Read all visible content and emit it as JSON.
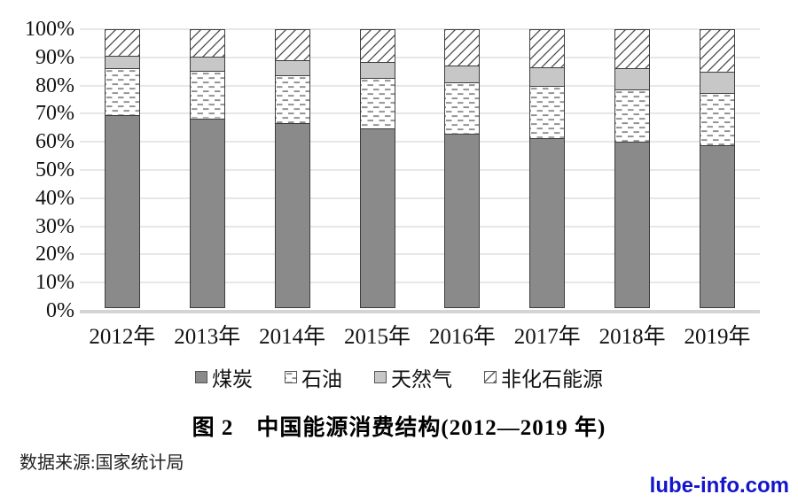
{
  "chart_data": {
    "type": "bar",
    "subtype": "stacked-percent-column",
    "categories": [
      "2012年",
      "2013年",
      "2014年",
      "2015年",
      "2016年",
      "2017年",
      "2018年",
      "2019年"
    ],
    "series": [
      {
        "name": "煤炭",
        "style": "solid-dark",
        "values": [
          68.5,
          67.4,
          65.6,
          63.8,
          62.0,
          60.4,
          59.0,
          57.7
        ]
      },
      {
        "name": "石油",
        "style": "dash-pattern",
        "values": [
          17.0,
          17.1,
          17.4,
          18.4,
          18.5,
          18.8,
          18.9,
          18.9
        ]
      },
      {
        "name": "天然气",
        "style": "solid-light",
        "values": [
          4.8,
          5.3,
          5.7,
          5.8,
          6.2,
          7.0,
          7.8,
          8.1
        ]
      },
      {
        "name": "非化石能源",
        "style": "diagonal-hatch",
        "values": [
          9.7,
          10.2,
          11.3,
          12.0,
          13.3,
          13.8,
          14.3,
          15.3
        ]
      }
    ],
    "y_ticks": [
      "0%",
      "10%",
      "20%",
      "30%",
      "40%",
      "50%",
      "60%",
      "70%",
      "80%",
      "90%",
      "100%"
    ],
    "ylim": [
      0,
      100
    ],
    "grid": true,
    "legend_position": "bottom",
    "title": "图 2　中国能源消费结构(2012—2019 年)"
  },
  "colors": {
    "coal_fill": "#8a8a8a",
    "gas_fill": "#c7c7c7",
    "pattern_ink": "#8f8f8f",
    "hatch_ink": "#4a4a4a",
    "segment_border": "#3d3d3d",
    "gridline": "#e7e7e7",
    "axis_line": "#d4d4d4",
    "watermark_blue": "#1414cc"
  },
  "caption": {
    "title": "图 2　中国能源消费结构(2012—2019 年)"
  },
  "source": {
    "label": "数据来源:国家统计局"
  },
  "watermark": {
    "label": "lube-info.com"
  }
}
